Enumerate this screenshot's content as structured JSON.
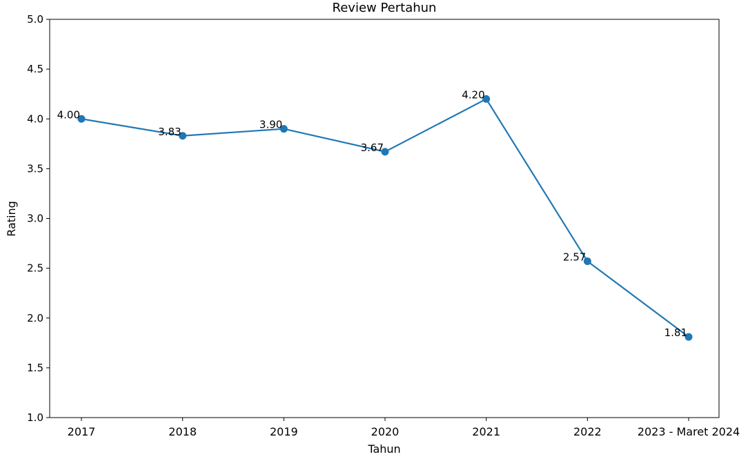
{
  "chart_data": {
    "type": "line",
    "title": "Review Pertahun",
    "xlabel": "Tahun",
    "ylabel": "Rating",
    "categories": [
      "2017",
      "2018",
      "2019",
      "2020",
      "2021",
      "2022",
      "2023 - Maret 2024"
    ],
    "series": [
      {
        "values": [
          4.0,
          3.83,
          3.9,
          3.67,
          4.2,
          2.57,
          1.81
        ],
        "labels": [
          "4.00",
          "3.83",
          "3.90",
          "3.67",
          "4.20",
          "2.57",
          "1.81"
        ],
        "color": "#1f77b4"
      }
    ],
    "ylim": [
      1.0,
      5.0
    ],
    "yticks": [
      "1.0",
      "1.5",
      "2.0",
      "2.5",
      "3.0",
      "3.5",
      "4.0",
      "4.5",
      "5.0"
    ],
    "grid": false,
    "legend": false
  }
}
